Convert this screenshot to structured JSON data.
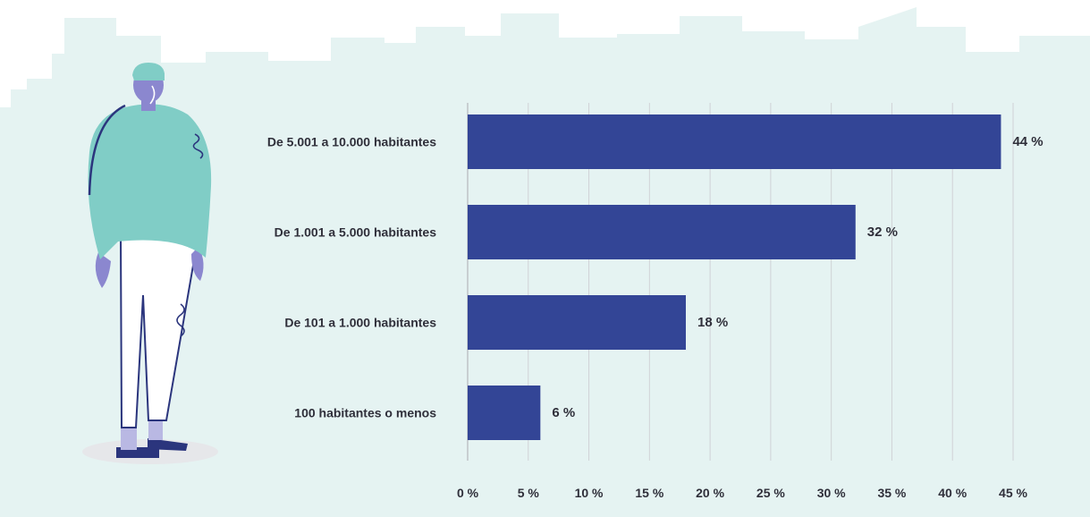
{
  "colors": {
    "bar": "#334596",
    "background_skyline": "#e5f3f2",
    "grid": "#d0d2d6",
    "figure_sweater": "#80cdc6",
    "figure_skin": "#8b87cf",
    "figure_outline": "#2b357d"
  },
  "chart_data": {
    "type": "bar",
    "orientation": "horizontal",
    "categories": [
      "De 5.001 a 10.000 habitantes",
      "De 1.001 a 5.000 habitantes",
      "De 101 a 1.000 habitantes",
      "100 habitantes o menos"
    ],
    "values": [
      44,
      32,
      18,
      6
    ],
    "value_labels": [
      "44 %",
      "32 %",
      "18 %",
      "6 %"
    ],
    "x_ticks": [
      "0 %",
      "5 %",
      "10 %",
      "15 %",
      "20 %",
      "25 %",
      "30 %",
      "35 %",
      "40 %",
      "45 %"
    ],
    "xlim": [
      0,
      45
    ],
    "grid": "vertical",
    "legend": "none"
  }
}
